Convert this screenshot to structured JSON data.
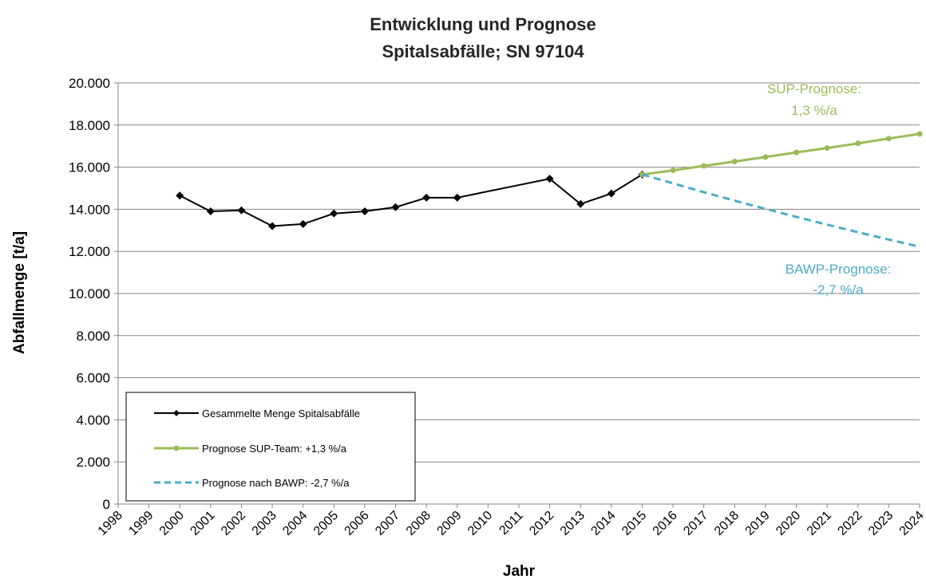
{
  "chart_data": {
    "type": "line",
    "title": [
      "Entwicklung und Prognose",
      "Spitalsabfälle; SN 97104"
    ],
    "xlabel": "Jahr",
    "ylabel": "Abfallmenge [t/a]",
    "ylim": [
      0,
      20000
    ],
    "yticks": [
      0,
      2000,
      4000,
      6000,
      8000,
      10000,
      12000,
      14000,
      16000,
      18000,
      20000
    ],
    "ytick_labels": [
      "0",
      "2.000",
      "4.000",
      "6.000",
      "8.000",
      "10.000",
      "12.000",
      "14.000",
      "16.000",
      "18.000",
      "20.000"
    ],
    "x_categories": [
      "1998",
      "1999",
      "2000",
      "2001",
      "2002",
      "2003",
      "2004",
      "2005",
      "2006",
      "2007",
      "2008",
      "2009",
      "2010",
      "2011",
      "2012",
      "2013",
      "2014",
      "2015",
      "2016",
      "2017",
      "2018",
      "2019",
      "2020",
      "2021",
      "2022",
      "2023",
      "2024"
    ],
    "grid": "horizontal",
    "legend_position": "bottom-left",
    "series": [
      {
        "name": "Gesammelte Menge Spitalsabfälle",
        "color": "#000000",
        "style": "solid",
        "marker": "diamond",
        "x": [
          "2000",
          "2001",
          "2002",
          "2003",
          "2004",
          "2005",
          "2006",
          "2007",
          "2008",
          "2009",
          "2012",
          "2013",
          "2014",
          "2015"
        ],
        "y": [
          14650,
          13900,
          13950,
          13200,
          13300,
          13800,
          13900,
          14100,
          14550,
          14550,
          15450,
          14250,
          14750,
          15650
        ]
      },
      {
        "name": "Prognose SUP-Team: +1,3 %/a",
        "color": "#9BBB59",
        "style": "solid",
        "marker": "circle",
        "x": [
          "2015",
          "2016",
          "2017",
          "2018",
          "2019",
          "2020",
          "2021",
          "2022",
          "2023",
          "2024"
        ],
        "y": [
          15650,
          15850,
          16060,
          16270,
          16480,
          16700,
          16910,
          17130,
          17360,
          17580
        ]
      },
      {
        "name": "Prognose nach BAWP: -2,7 %/a",
        "color": "#4BACC6",
        "style": "dashed",
        "marker": "none",
        "x": [
          "2015",
          "2016",
          "2017",
          "2018",
          "2019",
          "2020",
          "2021",
          "2022",
          "2023",
          "2024"
        ],
        "y": [
          15650,
          15230,
          14810,
          14410,
          14020,
          13640,
          13270,
          12910,
          12560,
          12220
        ]
      }
    ],
    "annotations": [
      {
        "lines": [
          "SUP-Prognose:",
          "1,3 %/a"
        ],
        "color": "#9BBB59"
      },
      {
        "lines": [
          "BAWP-Prognose:",
          "-2,7 %/a"
        ],
        "color": "#4BACC6"
      }
    ]
  }
}
